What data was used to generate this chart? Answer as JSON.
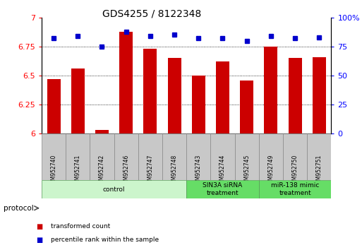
{
  "title": "GDS4255 / 8122348",
  "samples": [
    "GSM952740",
    "GSM952741",
    "GSM952742",
    "GSM952746",
    "GSM952747",
    "GSM952748",
    "GSM952743",
    "GSM952744",
    "GSM952745",
    "GSM952749",
    "GSM952750",
    "GSM952751"
  ],
  "transformed_counts": [
    6.47,
    6.56,
    6.03,
    6.88,
    6.73,
    6.65,
    6.5,
    6.62,
    6.46,
    6.75,
    6.65,
    6.66
  ],
  "percentile_ranks": [
    82,
    84,
    75,
    88,
    84,
    85,
    82,
    82,
    80,
    84,
    82,
    83
  ],
  "bar_color": "#cc0000",
  "dot_color": "#0000cc",
  "ylim_left": [
    6.0,
    7.0
  ],
  "ylim_right": [
    0,
    100
  ],
  "yticks_left": [
    6.0,
    6.25,
    6.5,
    6.75,
    7.0
  ],
  "ytick_labels_left": [
    "6",
    "6.25",
    "6.5",
    "6.75",
    "7"
  ],
  "yticks_right": [
    0,
    25,
    50,
    75,
    100
  ],
  "ytick_labels_right": [
    "0",
    "25",
    "50",
    "75",
    "100%"
  ],
  "grid_values": [
    6.25,
    6.5,
    6.75
  ],
  "bar_width": 0.55,
  "group_colors": [
    "#ccf5cc",
    "#66dd66",
    "#66dd66"
  ],
  "group_labels": [
    "control",
    "SIN3A siRNA\ntreatment",
    "miR-138 mimic\ntreatment"
  ],
  "group_ranges": [
    [
      0,
      6
    ],
    [
      6,
      9
    ],
    [
      9,
      12
    ]
  ],
  "legend_items": [
    {
      "label": "transformed count",
      "color": "#cc0000"
    },
    {
      "label": "percentile rank within the sample",
      "color": "#0000cc"
    }
  ]
}
